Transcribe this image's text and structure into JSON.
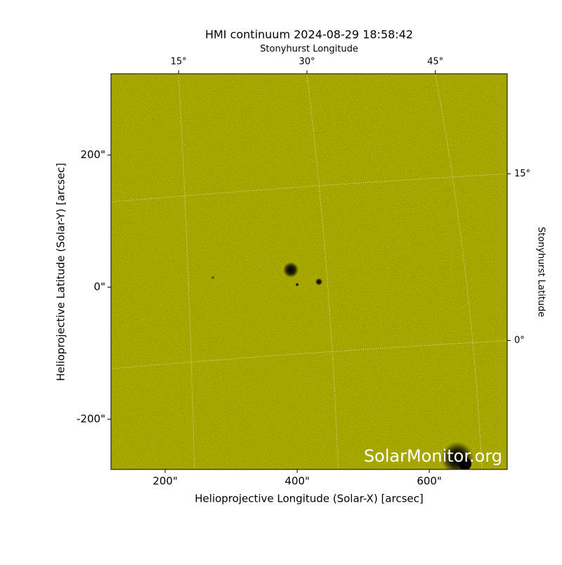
{
  "chart_data": {
    "type": "image",
    "title": "HMI continuum 2024-08-29 18:58:42",
    "x_label": "Helioprojective Longitude (Solar-X) [arcsec]",
    "y_label": "Helioprojective Latitude (Solar-Y) [arcsec]",
    "x2_label": "Stonyhurst Longitude",
    "y2_label": "Stonyhurst Latitude",
    "watermark": "SolarMonitor.org",
    "color": "#c9c900",
    "xlim": [
      118,
      718
    ],
    "ylim": [
      -276,
      323
    ],
    "xticks": [
      {
        "value": 200,
        "label": "200\""
      },
      {
        "value": 400,
        "label": "400\""
      },
      {
        "value": 600,
        "label": "600\""
      }
    ],
    "yticks": [
      {
        "value": -200,
        "label": "-200\""
      },
      {
        "value": 0,
        "label": "0\""
      },
      {
        "value": 200,
        "label": "200\""
      }
    ],
    "x2lim": [
      7.1,
      53.4
    ],
    "x2ticks": [
      {
        "value": 15,
        "label": "15°"
      },
      {
        "value": 30,
        "label": "30°"
      },
      {
        "value": 45,
        "label": "45°"
      }
    ],
    "y2lim": [
      -11.6,
      24
    ],
    "y2ticks": [
      {
        "value": 0,
        "label": "0°"
      },
      {
        "value": 15,
        "label": "15°"
      }
    ],
    "grid": true
  }
}
